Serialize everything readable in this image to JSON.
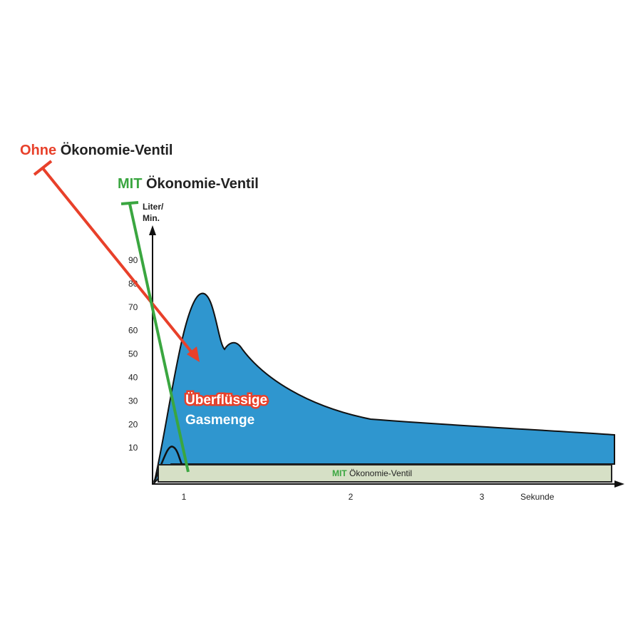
{
  "legend_top": {
    "ohne_word": "Ohne",
    "ohne_rest": "Ökonomie-Ventil",
    "mit_word": "MIT",
    "mit_rest": "Ökonomie-Ventil"
  },
  "y_axis": {
    "label_line1": "Liter/",
    "label_line2": "Min.",
    "ticks": [
      "90",
      "80",
      "70",
      "60",
      "50",
      "40",
      "30",
      "20",
      "10"
    ]
  },
  "x_axis": {
    "ticks": [
      "1",
      "2",
      "3"
    ],
    "label": "Sekunde"
  },
  "area_labels": {
    "line1": "Überflüssige",
    "line2": "Gasmenge"
  },
  "strip_label": {
    "word": "MIT",
    "rest": "Ökonomie-Ventil"
  }
}
